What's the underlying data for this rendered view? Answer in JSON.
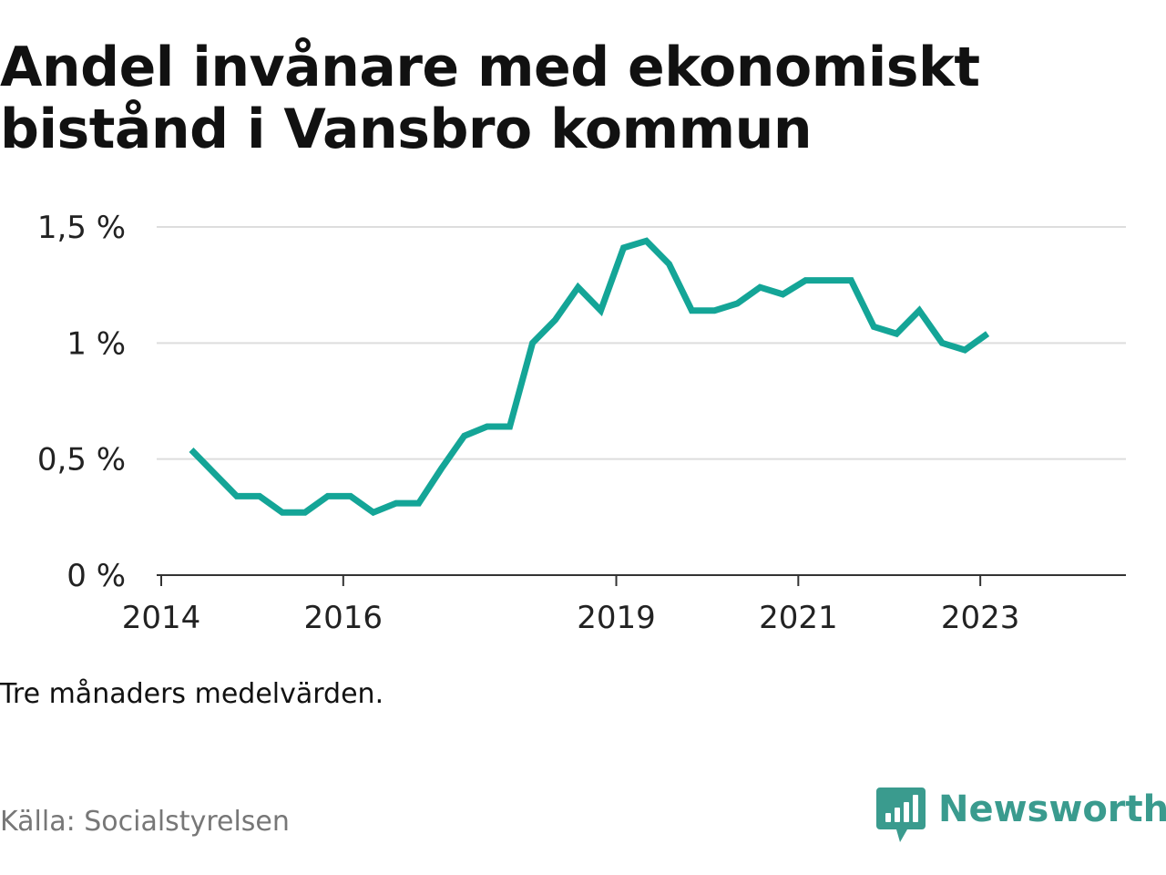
{
  "header": {
    "title_line1": "Andel invånare med ekonomiskt",
    "title_line2": "bistånd i Vansbro kommun"
  },
  "chart_data": {
    "type": "line",
    "title": "Andel invånare med ekonomiskt bistånd i Vansbro kommun",
    "xlabel": "",
    "ylabel": "",
    "x_tick_labels": [
      "2014",
      "2016",
      "2019",
      "2021",
      "2023"
    ],
    "x_ticks": [
      2014.0,
      2016.0,
      2019.0,
      2021.0,
      2023.0
    ],
    "y_tick_labels": [
      "0 %",
      "0,5 %",
      "1 %",
      "1,5 %"
    ],
    "y_ticks": [
      0,
      0.5,
      1.0,
      1.5
    ],
    "xlim": [
      2013.95,
      2024.6
    ],
    "ylim": [
      0,
      1.5
    ],
    "grid": true,
    "color": "#14a597",
    "series": [
      {
        "x": [
          2014.33,
          2014.58,
          2014.83,
          2015.08,
          2015.33,
          2015.58,
          2015.83,
          2016.08,
          2016.33,
          2016.58,
          2016.83,
          2017.08,
          2017.33,
          2017.58,
          2017.83,
          2018.08,
          2018.33,
          2018.58,
          2018.83,
          2019.08,
          2019.33,
          2019.58,
          2019.83,
          2020.08,
          2020.33,
          2020.58,
          2020.83,
          2021.08,
          2021.33,
          2021.58,
          2021.83,
          2022.08,
          2022.33,
          2022.58,
          2022.83,
          2023.08
        ],
        "y": [
          0.54,
          0.44,
          0.34,
          0.34,
          0.27,
          0.27,
          0.34,
          0.34,
          0.27,
          0.31,
          0.31,
          0.46,
          0.6,
          0.64,
          0.64,
          1.0,
          1.1,
          1.24,
          1.14,
          1.41,
          1.44,
          1.34,
          1.14,
          1.14,
          1.17,
          1.24,
          1.21,
          1.27,
          1.27,
          1.27,
          1.07,
          1.04,
          1.14,
          1.0,
          0.97,
          1.04
        ]
      }
    ]
  },
  "footer": {
    "note": "Tre månaders medelvärden.",
    "source": "Källa: Socialstyrelsen",
    "brand": "Newsworthy",
    "brand_icon": "bar-chart-speech-bubble-icon"
  }
}
